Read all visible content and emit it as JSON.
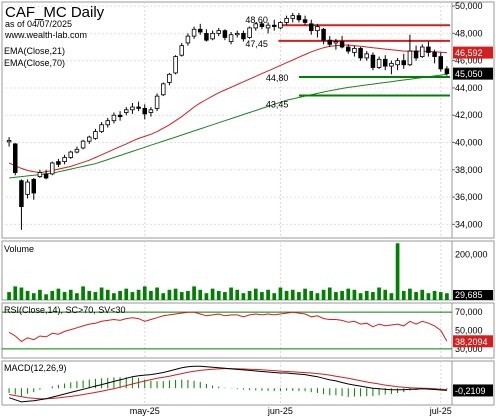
{
  "chart_data": [
    {
      "type": "candlestick",
      "title": "CAF_MC Daily",
      "subtitle": "as of 04/07/2025",
      "watermark": "www.wealth-lab.com",
      "legend": [
        "EMA(Close,21)",
        "EMA(Close,70)"
      ],
      "y_ticks": [
        "50,000",
        "48,000",
        "46,000",
        "44,000",
        "42,000",
        "40,000",
        "38,000",
        "36,000",
        "34,000"
      ],
      "ylim": [
        33000,
        50300
      ],
      "x_ticks": [
        "may-25",
        "jun-25",
        "jul-25"
      ],
      "x_tick_index": [
        22,
        44,
        70
      ],
      "last_close_label": "45,050",
      "last_close": 45050,
      "ema21_label": "46,592",
      "ema21_last": 46592,
      "colors": {
        "ema21": "#d02020",
        "ema70": "#208020",
        "up": "#ffffff",
        "down": "#000000",
        "resistance": "#d02020",
        "support": "#008000"
      },
      "levels": [
        {
          "label": "48,60",
          "value": 48600,
          "kind": "resistance"
        },
        {
          "label": "47,45",
          "value": 47450,
          "kind": "resistance"
        },
        {
          "label": "44,80",
          "value": 44800,
          "kind": "support"
        },
        {
          "label": "43,45",
          "value": 43450,
          "kind": "support"
        }
      ],
      "candles": [
        [
          40050,
          40400,
          39700,
          40150
        ],
        [
          39900,
          39950,
          37600,
          37800
        ],
        [
          37200,
          37300,
          33600,
          35300
        ],
        [
          36200,
          37300,
          35900,
          37100
        ],
        [
          37300,
          37400,
          35800,
          36300
        ],
        [
          37500,
          38000,
          37400,
          37800
        ],
        [
          37700,
          38000,
          37300,
          37400
        ],
        [
          37700,
          38600,
          37600,
          38500
        ],
        [
          38600,
          38800,
          38200,
          38400
        ],
        [
          38600,
          39100,
          38400,
          38900
        ],
        [
          38900,
          39400,
          38800,
          39300
        ],
        [
          39300,
          39700,
          39200,
          39500
        ],
        [
          39600,
          40200,
          39500,
          40100
        ],
        [
          40100,
          40500,
          39900,
          40400
        ],
        [
          40300,
          41000,
          40200,
          40800
        ],
        [
          40800,
          41500,
          40700,
          41300
        ],
        [
          41300,
          41800,
          41100,
          41600
        ],
        [
          41600,
          42200,
          41400,
          42000
        ],
        [
          42000,
          42300,
          41600,
          41900
        ],
        [
          42200,
          42600,
          42000,
          42400
        ],
        [
          42400,
          42900,
          42100,
          42600
        ],
        [
          42600,
          43000,
          42300,
          42500
        ],
        [
          42500,
          42800,
          41700,
          42100
        ],
        [
          42200,
          42600,
          41900,
          42400
        ],
        [
          42500,
          43600,
          42300,
          43400
        ],
        [
          43500,
          44400,
          43400,
          44300
        ],
        [
          44400,
          45100,
          44200,
          45000
        ],
        [
          45100,
          46400,
          45000,
          46300
        ],
        [
          46400,
          47300,
          46300,
          47100
        ],
        [
          47300,
          48000,
          47100,
          47800
        ],
        [
          47800,
          48500,
          47600,
          48300
        ],
        [
          48300,
          48700,
          47900,
          48100
        ],
        [
          48000,
          48300,
          47400,
          47500
        ],
        [
          47600,
          48200,
          47500,
          48000
        ],
        [
          48000,
          48400,
          47800,
          48200
        ],
        [
          48200,
          48300,
          47500,
          47700
        ],
        [
          47400,
          48100,
          47200,
          47900
        ],
        [
          47900,
          48200,
          47700,
          48000
        ],
        [
          48000,
          48200,
          47400,
          47600
        ],
        [
          47700,
          48500,
          47600,
          48400
        ],
        [
          48400,
          48800,
          48200,
          48700
        ],
        [
          48700,
          48900,
          48300,
          48500
        ],
        [
          48400,
          48800,
          48000,
          48600
        ],
        [
          48600,
          49000,
          48200,
          48500
        ],
        [
          48400,
          48900,
          48300,
          48800
        ],
        [
          48800,
          49300,
          48600,
          49100
        ],
        [
          49100,
          49500,
          48800,
          49300
        ],
        [
          49300,
          49500,
          48800,
          49000
        ],
        [
          49000,
          49300,
          48600,
          48800
        ],
        [
          48700,
          49000,
          47900,
          48200
        ],
        [
          48200,
          48700,
          47700,
          48500
        ],
        [
          48300,
          48400,
          47200,
          47500
        ],
        [
          47500,
          47800,
          47000,
          47200
        ],
        [
          47300,
          47600,
          46800,
          47400
        ],
        [
          47400,
          47800,
          46900,
          47000
        ],
        [
          47000,
          47200,
          46500,
          46700
        ],
        [
          46600,
          47100,
          46300,
          46900
        ],
        [
          46900,
          47000,
          46000,
          46200
        ],
        [
          46200,
          46700,
          46000,
          46500
        ],
        [
          46400,
          46600,
          45300,
          45500
        ],
        [
          45500,
          46300,
          45400,
          46100
        ],
        [
          46100,
          46400,
          45300,
          45600
        ],
        [
          45600,
          46000,
          45000,
          45800
        ],
        [
          45700,
          46200,
          45300,
          46000
        ],
        [
          46000,
          46500,
          45400,
          45700
        ],
        [
          45700,
          47900,
          45600,
          46700
        ],
        [
          46700,
          47100,
          46000,
          46200
        ],
        [
          46300,
          47200,
          46200,
          47000
        ],
        [
          47000,
          47400,
          46300,
          46600
        ],
        [
          46600,
          46800,
          45800,
          46300
        ],
        [
          46300,
          46600,
          45200,
          45400
        ],
        [
          45400,
          45600,
          44900,
          45050
        ]
      ],
      "ema21": [
        38500,
        38300,
        38100,
        37950,
        37850,
        37800,
        37850,
        37950,
        38050,
        38150,
        38250,
        38400,
        38550,
        38700,
        38900,
        39100,
        39300,
        39500,
        39700,
        39900,
        40100,
        40300,
        40450,
        40600,
        40800,
        41050,
        41300,
        41600,
        41900,
        42250,
        42600,
        42900,
        43150,
        43400,
        43650,
        43850,
        44050,
        44250,
        44450,
        44650,
        44850,
        45050,
        45250,
        45450,
        45650,
        45850,
        46050,
        46250,
        46450,
        46650,
        46800,
        46950,
        47050,
        47100,
        47150,
        47150,
        47100,
        47050,
        47000,
        46950,
        46900,
        46850,
        46800,
        46750,
        46700,
        46700,
        46700,
        46700,
        46680,
        46650,
        46620,
        46592
      ],
      "ema70": [
        37400,
        37450,
        37500,
        37550,
        37600,
        37650,
        37700,
        37750,
        37850,
        37950,
        38050,
        38150,
        38250,
        38350,
        38450,
        38600,
        38750,
        38900,
        39050,
        39200,
        39350,
        39500,
        39650,
        39800,
        39950,
        40100,
        40250,
        40400,
        40550,
        40700,
        40850,
        41000,
        41150,
        41300,
        41450,
        41600,
        41750,
        41900,
        42050,
        42200,
        42350,
        42500,
        42650,
        42800,
        42950,
        43100,
        43200,
        43300,
        43400,
        43500,
        43600,
        43700,
        43800,
        43880,
        43960,
        44040,
        44100,
        44160,
        44220,
        44280,
        44340,
        44400,
        44460,
        44520,
        44580,
        44640,
        44700,
        44760,
        44820,
        44880,
        44940,
        45000
      ]
    },
    {
      "type": "bar",
      "title": "Volume",
      "y_ticks": [
        "200,000"
      ],
      "ylim": [
        0,
        260000
      ],
      "last_label": "29,685",
      "last_value": 29685,
      "colors": {
        "bar": "#008000"
      },
      "values": [
        35000,
        60000,
        55000,
        40000,
        30000,
        45000,
        25000,
        40000,
        50000,
        35000,
        45000,
        30000,
        60000,
        40000,
        35000,
        55000,
        45000,
        30000,
        40000,
        50000,
        35000,
        45000,
        60000,
        40000,
        55000,
        30000,
        45000,
        50000,
        35000,
        40000,
        60000,
        45000,
        30000,
        50000,
        40000,
        35000,
        55000,
        45000,
        30000,
        40000,
        50000,
        35000,
        45000,
        30000,
        55000,
        40000,
        45000,
        35000,
        50000,
        40000,
        30000,
        45000,
        55000,
        35000,
        40000,
        50000,
        45000,
        30000,
        40000,
        35000,
        55000,
        45000,
        30000,
        250000,
        40000,
        50000,
        35000,
        45000,
        30000,
        40000,
        35000,
        29685
      ]
    },
    {
      "type": "line",
      "title": "RSI(Close,14), SC>70, SV<30",
      "y_ticks": [
        "70,000",
        "50,000",
        "30,000"
      ],
      "ylim": [
        20,
        80
      ],
      "levels": [
        70,
        30
      ],
      "last_label": "38,2094",
      "last_value": 38.2094,
      "colors": {
        "line": "#d02020",
        "level": "#008000"
      },
      "values": [
        48,
        44,
        38,
        42,
        40,
        44,
        43,
        47,
        46,
        49,
        51,
        53,
        55,
        57,
        58,
        60,
        61,
        62,
        61,
        63,
        64,
        63,
        60,
        62,
        64,
        66,
        67,
        68,
        69,
        70,
        70,
        68,
        66,
        67,
        68,
        66,
        67,
        67,
        65,
        67,
        68,
        67,
        68,
        67,
        68,
        69,
        70,
        69,
        68,
        65,
        66,
        63,
        62,
        62,
        61,
        59,
        60,
        57,
        58,
        54,
        57,
        55,
        56,
        57,
        55,
        60,
        57,
        60,
        58,
        55,
        50,
        38.2094
      ]
    },
    {
      "type": "line",
      "title": "MACD(12,26,9)",
      "last_label": "-0,2109",
      "last_value": -0.2109,
      "ylim": [
        -1.6,
        2.6
      ],
      "colors": {
        "macd": "#000000",
        "signal": "#d02020",
        "hist": "#008000"
      },
      "macd": [
        -0.9,
        -1.1,
        -1.3,
        -1.25,
        -1.2,
        -1.1,
        -1.0,
        -0.85,
        -0.7,
        -0.55,
        -0.4,
        -0.25,
        -0.1,
        0.05,
        0.2,
        0.35,
        0.5,
        0.65,
        0.8,
        0.95,
        1.1,
        1.2,
        1.25,
        1.3,
        1.4,
        1.5,
        1.65,
        1.8,
        1.95,
        2.05,
        2.1,
        2.1,
        2.05,
        2.0,
        1.95,
        1.9,
        1.85,
        1.8,
        1.75,
        1.7,
        1.65,
        1.6,
        1.55,
        1.5,
        1.45,
        1.45,
        1.4,
        1.35,
        1.3,
        1.2,
        1.1,
        0.95,
        0.8,
        0.7,
        0.55,
        0.4,
        0.3,
        0.2,
        0.1,
        0.0,
        -0.05,
        -0.1,
        -0.15,
        -0.15,
        -0.15,
        -0.1,
        -0.1,
        -0.05,
        -0.08,
        -0.12,
        -0.17,
        -0.2109
      ],
      "signal": [
        -0.6,
        -0.7,
        -0.8,
        -0.9,
        -0.95,
        -1.0,
        -1.0,
        -0.97,
        -0.92,
        -0.85,
        -0.78,
        -0.7,
        -0.6,
        -0.5,
        -0.4,
        -0.28,
        -0.16,
        -0.04,
        0.1,
        0.25,
        0.4,
        0.55,
        0.7,
        0.82,
        0.95,
        1.05,
        1.15,
        1.27,
        1.4,
        1.52,
        1.62,
        1.7,
        1.77,
        1.82,
        1.85,
        1.87,
        1.87,
        1.86,
        1.84,
        1.82,
        1.79,
        1.76,
        1.72,
        1.68,
        1.64,
        1.6,
        1.57,
        1.53,
        1.49,
        1.45,
        1.4,
        1.33,
        1.25,
        1.15,
        1.05,
        0.95,
        0.83,
        0.72,
        0.6,
        0.5,
        0.4,
        0.3,
        0.22,
        0.15,
        0.1,
        0.05,
        0.02,
        0.0,
        -0.02,
        -0.05,
        -0.09,
        -0.13
      ]
    }
  ]
}
